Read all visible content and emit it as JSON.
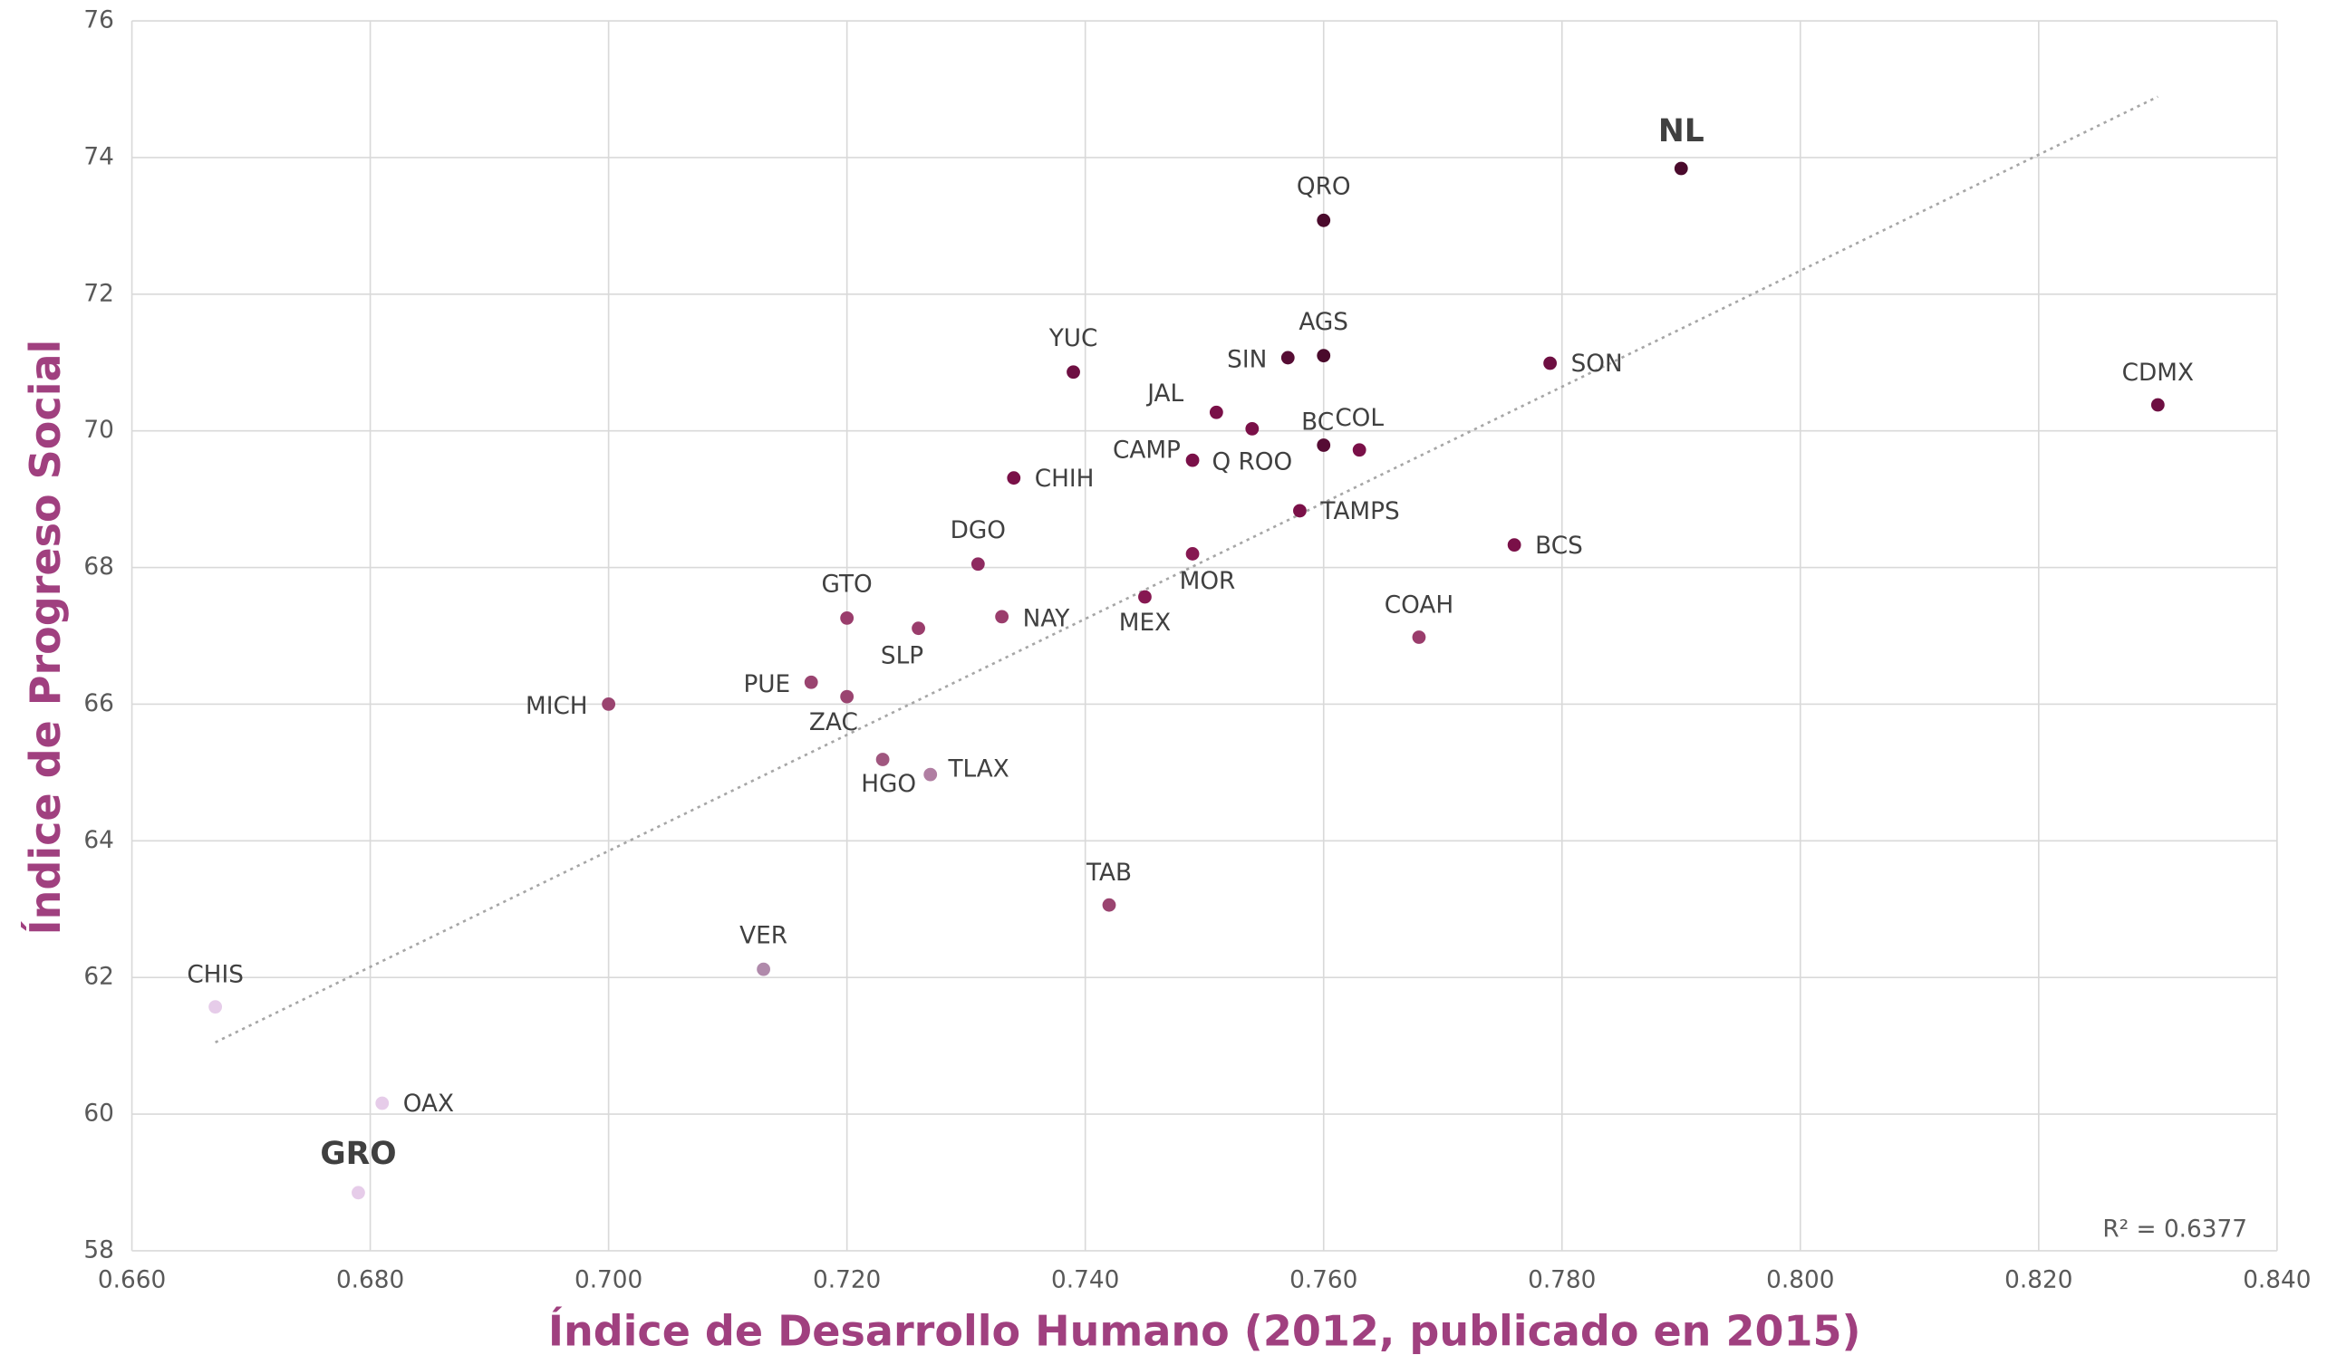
{
  "chart_data": {
    "type": "scatter",
    "xlabel": "Índice de Desarrollo Humano (2012, publicado en 2015)",
    "ylabel": "Índice de Progreso Social",
    "labels": [
      "NL",
      "QRO",
      "AGS",
      "SIN",
      "SON",
      "CDMX",
      "YUC",
      "JAL",
      "Q ROO",
      "CAMP",
      "BC",
      "COL",
      "CHIH",
      "TAMPS",
      "BCS",
      "MOR",
      "DGO",
      "MEX",
      "GTO",
      "NAY",
      "SLP",
      "COAH",
      "PUE",
      "ZAC",
      "MICH",
      "HGO",
      "TLAX",
      "TAB",
      "VER",
      "CHIS",
      "OAX",
      "GRO"
    ],
    "x": [
      0.79,
      0.76,
      0.76,
      0.757,
      0.779,
      0.83,
      0.739,
      0.751,
      0.754,
      0.749,
      0.76,
      0.763,
      0.734,
      0.758,
      0.776,
      0.749,
      0.731,
      0.745,
      0.72,
      0.733,
      0.726,
      0.768,
      0.717,
      0.72,
      0.7,
      0.723,
      0.727,
      0.742,
      0.713,
      0.667,
      0.681,
      0.679
    ],
    "y": [
      73.84,
      73.08,
      71.1,
      71.07,
      70.99,
      70.38,
      70.86,
      70.27,
      70.03,
      69.57,
      69.79,
      69.72,
      69.31,
      68.83,
      68.33,
      68.2,
      68.05,
      67.57,
      67.26,
      67.28,
      67.11,
      66.98,
      66.32,
      66.11,
      66.0,
      65.19,
      64.97,
      63.06,
      62.12,
      61.57,
      60.16,
      58.85
    ],
    "colors": [
      "#4a0a2c",
      "#4a0a2c",
      "#4a0a2c",
      "#560c34",
      "#6e0f42",
      "#6e0f42",
      "#6e0f42",
      "#7a1048",
      "#7a1048",
      "#7a1048",
      "#560c34",
      "#7a1048",
      "#7a1048",
      "#7a1048",
      "#7a1048",
      "#861851",
      "#8e2a60",
      "#861851",
      "#9a3d6c",
      "#9a3d6c",
      "#9a3d6c",
      "#9a3d6c",
      "#9a4470",
      "#9a4470",
      "#9a4470",
      "#a0577f",
      "#b07ea2",
      "#9a4470",
      "#b08aab",
      "#e6cce9",
      "#e6cce9",
      "#e6cce9"
    ],
    "trendline": {
      "x": [
        0.667,
        0.83
      ],
      "y": [
        61.05,
        74.89
      ],
      "color": "#a6a6a6"
    },
    "r_squared_label": "R² = 0.6377",
    "xlim": [
      0.66,
      0.84
    ],
    "xticks": [
      {
        "value": 0.66,
        "label": "0.660"
      },
      {
        "value": 0.68,
        "label": "0.680"
      },
      {
        "value": 0.7,
        "label": "0.700"
      },
      {
        "value": 0.72,
        "label": "0.720"
      },
      {
        "value": 0.74,
        "label": "0.740"
      },
      {
        "value": 0.76,
        "label": "0.760"
      },
      {
        "value": 0.78,
        "label": "0.780"
      },
      {
        "value": 0.8,
        "label": "0.800"
      },
      {
        "value": 0.82,
        "label": "0.820"
      },
      {
        "value": 0.84,
        "label": "0.840"
      }
    ],
    "ylim": [
      58,
      76
    ],
    "yticks": [
      58,
      60,
      62,
      64,
      66,
      68,
      70,
      72,
      74,
      76
    ],
    "grid": true
  }
}
